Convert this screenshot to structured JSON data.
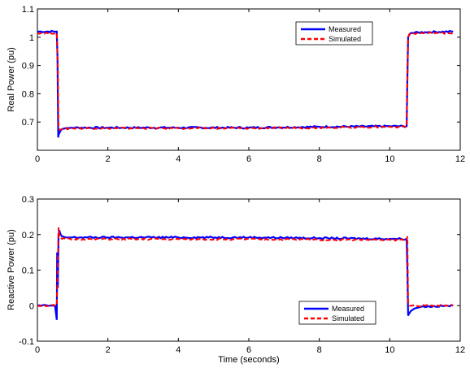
{
  "colors": {
    "measured": "#0000ff",
    "simulated": "#ff0000"
  },
  "chart_data": [
    {
      "type": "line",
      "ylabel": "Real Power (pu)",
      "xlabel": "",
      "xlim": [
        0,
        12
      ],
      "ylim": [
        0.6,
        1.1
      ],
      "xticks": [
        "0",
        "2",
        "4",
        "6",
        "8",
        "10",
        "12"
      ],
      "yticks": [
        "0.7",
        "0.8",
        "0.9",
        "1",
        "1.1"
      ],
      "legend_position": "top-right",
      "series": [
        {
          "name": "Measured",
          "x": [
            0,
            0.55,
            0.57,
            0.59,
            0.6,
            0.62,
            0.65,
            0.7,
            0.8,
            1.0,
            2,
            4,
            6,
            8,
            10,
            10.48,
            10.5,
            10.52,
            10.56,
            10.6,
            11,
            11.8
          ],
          "y": [
            1.02,
            1.02,
            0.93,
            0.645,
            0.655,
            0.66,
            0.668,
            0.675,
            0.678,
            0.68,
            0.68,
            0.68,
            0.68,
            0.683,
            0.685,
            0.685,
            0.86,
            1.0,
            1.01,
            1.015,
            1.018,
            1.02
          ]
        },
        {
          "name": "Simulated",
          "x": [
            0,
            0.55,
            0.58,
            0.6,
            0.63,
            0.7,
            1.0,
            2,
            4,
            6,
            8,
            10,
            10.48,
            10.52,
            10.56,
            11,
            11.8
          ],
          "y": [
            1.015,
            1.015,
            0.9,
            0.68,
            0.672,
            0.675,
            0.678,
            0.678,
            0.678,
            0.678,
            0.68,
            0.683,
            0.683,
            1.0,
            1.012,
            1.015,
            1.015
          ]
        }
      ]
    },
    {
      "type": "line",
      "ylabel": "Reactive Power (pu)",
      "xlabel": "Time (seconds)",
      "xlim": [
        0,
        12
      ],
      "ylim": [
        -0.1,
        0.3
      ],
      "xticks": [
        "0",
        "2",
        "4",
        "6",
        "8",
        "10",
        "12"
      ],
      "yticks": [
        "-0.1",
        "0",
        "0.1",
        "0.2",
        "0.3"
      ],
      "legend_position": "bottom-right",
      "series": [
        {
          "name": "Measured",
          "x": [
            0,
            0.5,
            0.55,
            0.56,
            0.58,
            0.6,
            0.62,
            0.66,
            0.7,
            0.8,
            1.0,
            2,
            4,
            6,
            8,
            10,
            10.48,
            10.5,
            10.52,
            10.55,
            10.6,
            10.7,
            10.9,
            11.8
          ],
          "y": [
            0,
            0,
            -0.04,
            0.15,
            0.05,
            0.2,
            0.212,
            0.2,
            0.195,
            0.192,
            0.192,
            0.192,
            0.192,
            0.192,
            0.19,
            0.188,
            0.188,
            0.1,
            -0.028,
            -0.022,
            -0.015,
            -0.008,
            -0.003,
            0
          ]
        },
        {
          "name": "Simulated",
          "x": [
            0,
            0.55,
            0.58,
            0.6,
            0.62,
            0.66,
            0.7,
            1.0,
            2,
            4,
            6,
            8,
            10,
            10.48,
            10.5,
            10.52,
            10.56,
            11,
            11.8
          ],
          "y": [
            0,
            0,
            0.12,
            0.22,
            0.2,
            0.19,
            0.188,
            0.187,
            0.187,
            0.187,
            0.187,
            0.186,
            0.185,
            0.185,
            0.195,
            0.01,
            0,
            0,
            0
          ]
        }
      ]
    }
  ]
}
